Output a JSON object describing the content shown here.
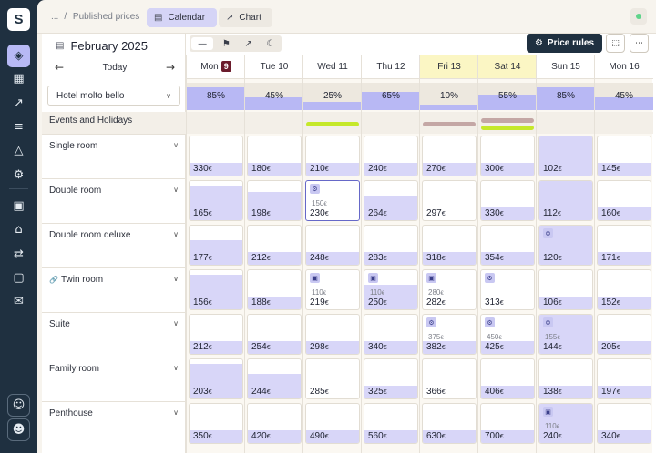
{
  "breadcrumb": {
    "ellipsis": "...",
    "separator": "/",
    "current": "Published prices"
  },
  "tabs": [
    {
      "label": "Calendar",
      "icon": "calendar-icon",
      "active": true
    },
    {
      "label": "Chart",
      "icon": "chart-icon",
      "active": false
    }
  ],
  "status": {
    "color": "#5fd48a"
  },
  "calendar": {
    "month": "February 2025",
    "today_label": "Today"
  },
  "hotel_select": {
    "value": "Hotel molto bello"
  },
  "events_label": "Events and Holidays",
  "toolbar": {
    "view_modes": [
      "line-icon",
      "flag-icon",
      "trend-icon",
      "moon-icon"
    ],
    "price_rules_label": "Price rules"
  },
  "days": [
    {
      "label": "Mon",
      "num": "9",
      "today": true,
      "highlight": false,
      "occupancy": 85
    },
    {
      "label": "Tue 10",
      "num": "",
      "today": false,
      "highlight": false,
      "occupancy": 45
    },
    {
      "label": "Wed 11",
      "num": "",
      "today": false,
      "highlight": false,
      "occupancy": 25
    },
    {
      "label": "Thu 12",
      "num": "",
      "today": false,
      "highlight": false,
      "occupancy": 65
    },
    {
      "label": "Fri 13",
      "num": "",
      "today": false,
      "highlight": true,
      "occupancy": 10
    },
    {
      "label": "Sat 14",
      "num": "",
      "today": false,
      "highlight": true,
      "occupancy": 55
    },
    {
      "label": "Sun 15",
      "num": "",
      "today": false,
      "highlight": false,
      "occupancy": 85
    },
    {
      "label": "Mon 16",
      "num": "",
      "today": false,
      "highlight": false,
      "occupancy": 45
    }
  ],
  "events": [
    [],
    [],
    [
      {
        "color": "#c5e82a"
      }
    ],
    [],
    [
      {
        "color": "#c4a7a5"
      }
    ],
    [
      {
        "color": "#c4a7a5"
      },
      {
        "color": "#c5e82a"
      }
    ],
    [],
    []
  ],
  "currency": "€",
  "rooms": [
    {
      "name": "Single room",
      "linked": false,
      "cells": [
        {
          "price": "330",
          "fill": 0.3
        },
        {
          "price": "180",
          "fill": 0.3
        },
        {
          "price": "210",
          "fill": 0.3
        },
        {
          "price": "240",
          "fill": 0.3
        },
        {
          "price": "270",
          "fill": 0.3
        },
        {
          "price": "300",
          "fill": 0.3
        },
        {
          "price": "102",
          "fill": 1.0
        },
        {
          "price": "145",
          "fill": 0.3
        }
      ]
    },
    {
      "name": "Double room",
      "linked": false,
      "cells": [
        {
          "price": "165",
          "fill": 0.85
        },
        {
          "price": "198",
          "fill": 0.7
        },
        {
          "price": "230",
          "old": "150",
          "badge": "gear-icon",
          "selected": true,
          "fill": 0.0
        },
        {
          "price": "264",
          "fill": 0.6
        },
        {
          "price": "297",
          "fill": 0.0
        },
        {
          "price": "330",
          "fill": 0.3
        },
        {
          "price": "112",
          "fill": 1.0
        },
        {
          "price": "160",
          "fill": 0.3
        }
      ]
    },
    {
      "name": "Double room deluxe",
      "linked": false,
      "cells": [
        {
          "price": "177",
          "fill": 0.6
        },
        {
          "price": "212",
          "fill": 0.3
        },
        {
          "price": "248",
          "fill": 0.3
        },
        {
          "price": "283",
          "fill": 0.3
        },
        {
          "price": "318",
          "fill": 0.3
        },
        {
          "price": "354",
          "fill": 0.3
        },
        {
          "price": "120",
          "badge": "gear-icon",
          "fill": 1.0
        },
        {
          "price": "171",
          "fill": 0.3
        }
      ]
    },
    {
      "name": "Twin room",
      "linked": true,
      "cells": [
        {
          "price": "156",
          "fill": 0.85
        },
        {
          "price": "188",
          "fill": 0.3
        },
        {
          "price": "219",
          "old": "110",
          "badge": "lock-icon",
          "fill": 0.0
        },
        {
          "price": "250",
          "old": "110",
          "badge": "lock-icon",
          "fill": 0.6
        },
        {
          "price": "282",
          "old": "280",
          "badge": "lock-icon",
          "fill": 0.0
        },
        {
          "price": "313",
          "badge": "gear-icon",
          "fill": 0.0
        },
        {
          "price": "106",
          "fill": 0.3
        },
        {
          "price": "152",
          "fill": 0.3
        }
      ]
    },
    {
      "name": "Suite",
      "linked": false,
      "cells": [
        {
          "price": "212",
          "fill": 0.3
        },
        {
          "price": "254",
          "fill": 0.3
        },
        {
          "price": "298",
          "fill": 0.3
        },
        {
          "price": "340",
          "fill": 0.3
        },
        {
          "price": "382",
          "old": "375",
          "badge": "gear-icon",
          "fill": 0.3
        },
        {
          "price": "425",
          "old": "450",
          "badge": "gear-icon",
          "fill": 0.3
        },
        {
          "price": "144",
          "old": "155",
          "badge": "gear-icon",
          "fill": 1.0
        },
        {
          "price": "205",
          "fill": 0.3
        }
      ]
    },
    {
      "name": "Family room",
      "linked": false,
      "cells": [
        {
          "price": "203",
          "fill": 0.85
        },
        {
          "price": "244",
          "fill": 0.6
        },
        {
          "price": "285",
          "fill": 0.0
        },
        {
          "price": "325",
          "fill": 0.3
        },
        {
          "price": "366",
          "fill": 0.0
        },
        {
          "price": "406",
          "fill": 0.3
        },
        {
          "price": "138",
          "fill": 0.3
        },
        {
          "price": "197",
          "fill": 0.3
        }
      ]
    },
    {
      "name": "Penthouse",
      "linked": false,
      "cells": [
        {
          "price": "350",
          "fill": 0.3
        },
        {
          "price": "420",
          "fill": 0.3
        },
        {
          "price": "490",
          "fill": 0.3
        },
        {
          "price": "560",
          "fill": 0.3
        },
        {
          "price": "630",
          "fill": 0.3
        },
        {
          "price": "700",
          "fill": 0.3
        },
        {
          "price": "240",
          "old": "110",
          "badge": "lock-icon",
          "fill": 1.0
        },
        {
          "price": "340",
          "fill": 0.3
        }
      ]
    }
  ],
  "sidebar_icons": [
    "logo",
    "tag-icon",
    "layout-icon",
    "chart-line-icon",
    "sliders-icon",
    "bar-chart-icon",
    "gear-icon",
    "copy-icon",
    "cart-icon",
    "swap-icon",
    "contact-icon",
    "mail-icon",
    "support-icon",
    "user-icon"
  ]
}
